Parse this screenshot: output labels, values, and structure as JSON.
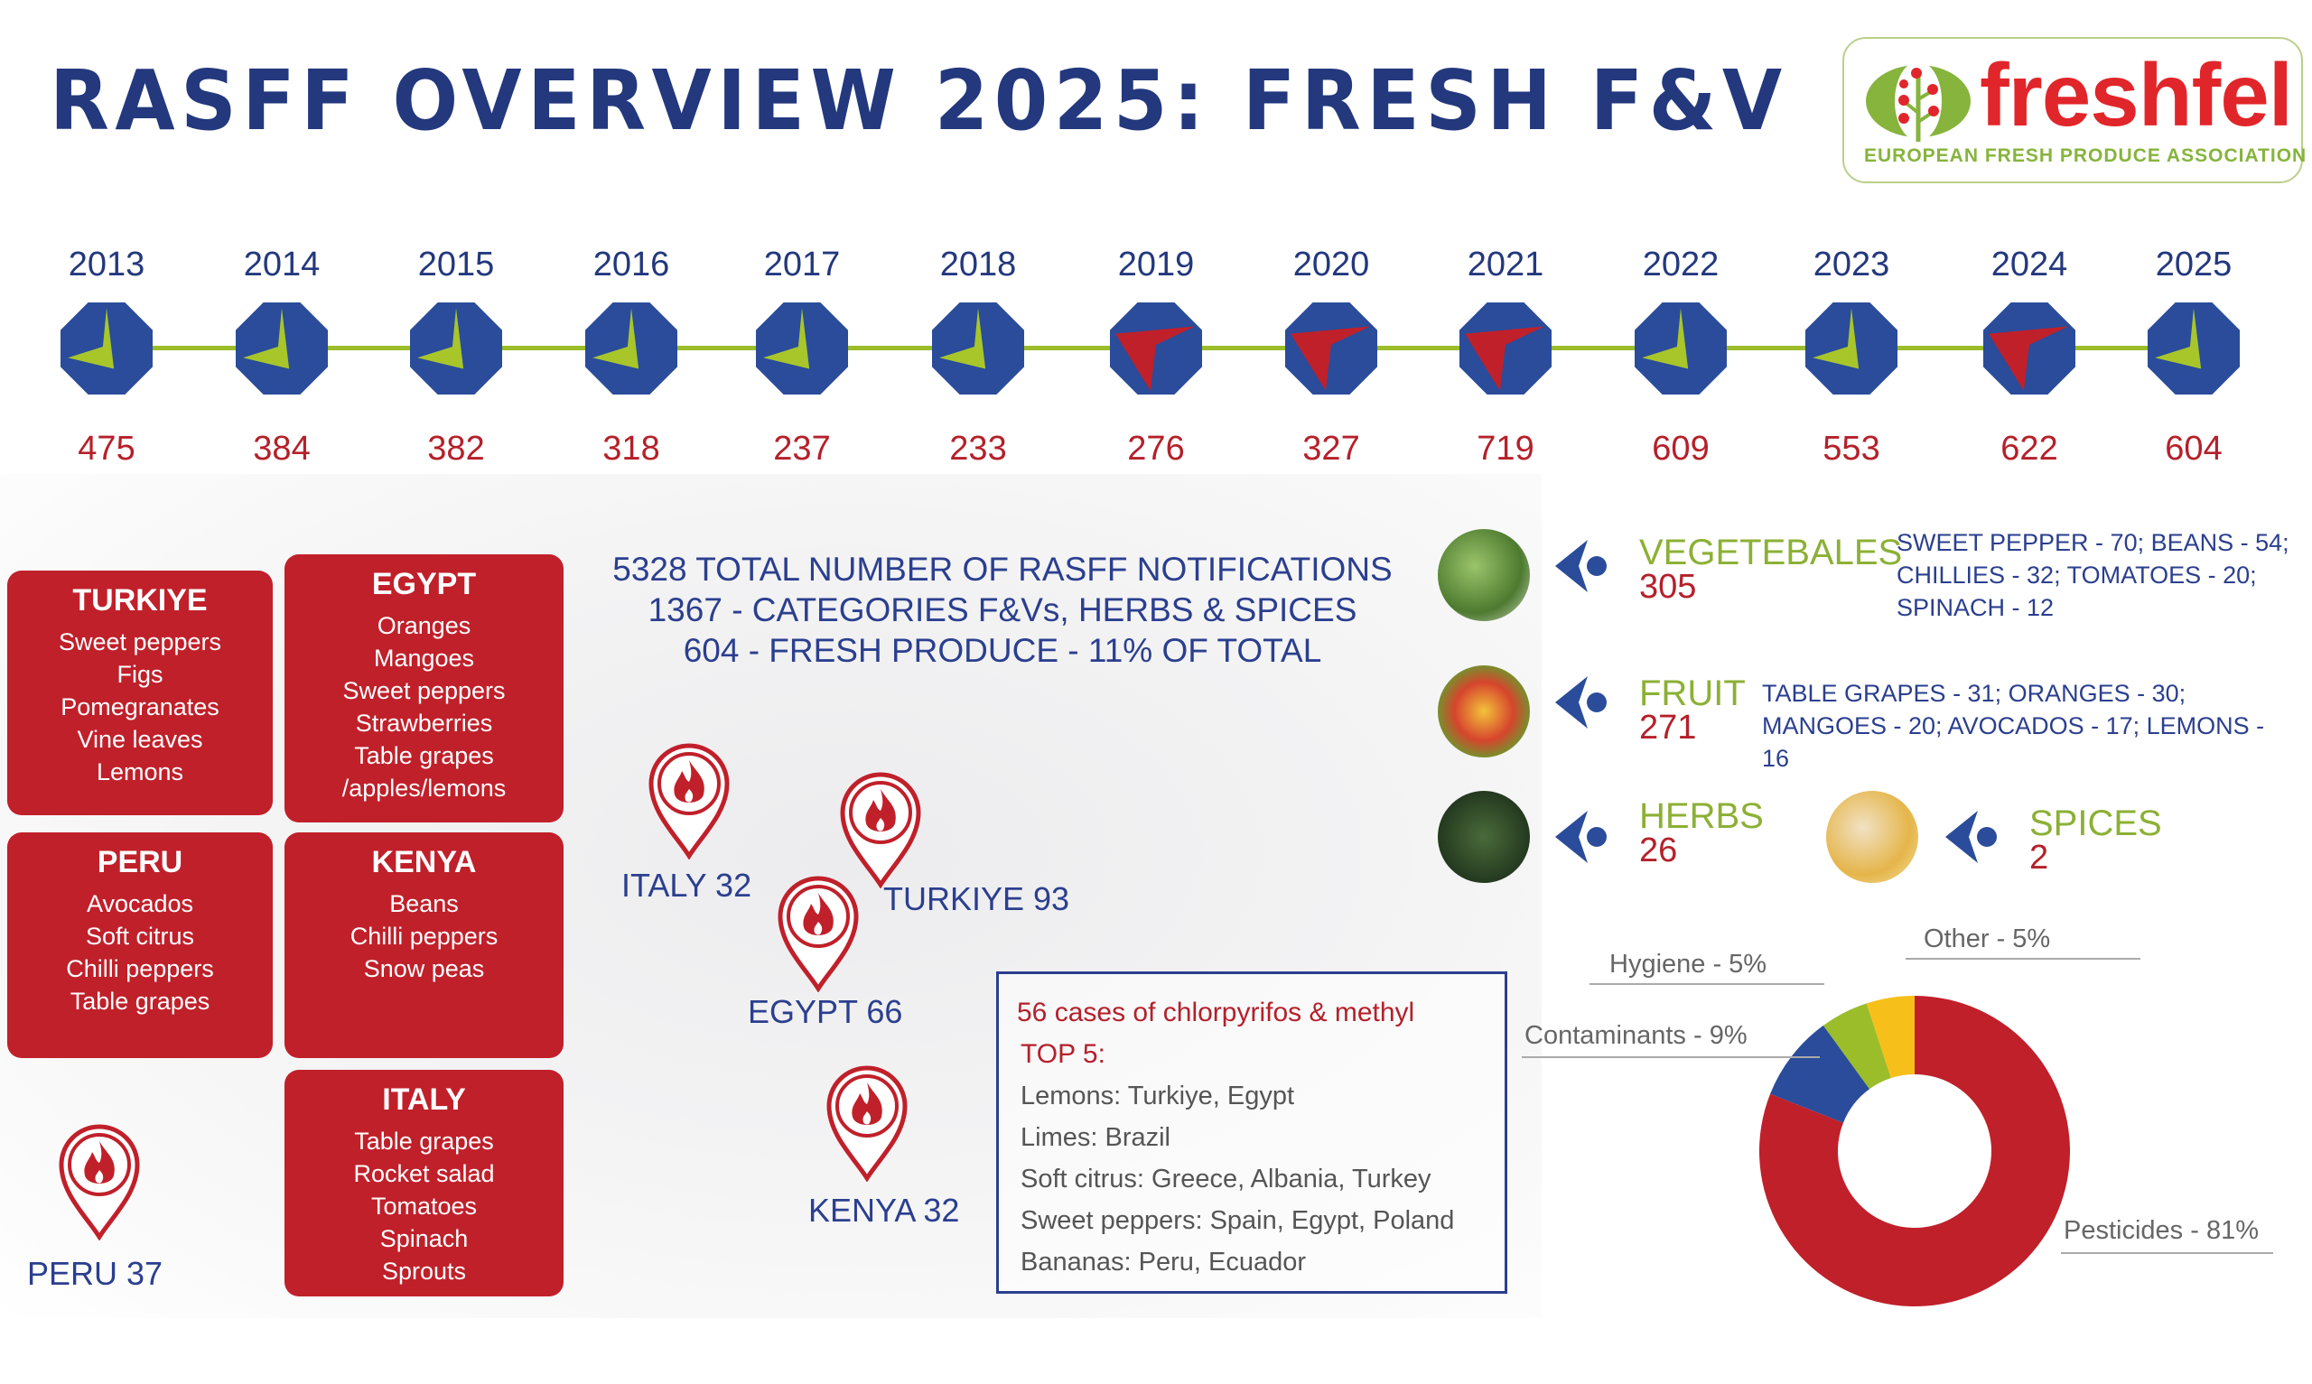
{
  "title": "RASFF OVERVIEW 2025: FRESH F&V",
  "logo": {
    "name": "freshfel",
    "tagline": "EUROPEAN FRESH PRODUCE ASSOCIATION"
  },
  "colors": {
    "navy": "#23387d",
    "red": "#c0202a",
    "green": "#9bbd2a",
    "octagon": "#2a4c9a",
    "yellow": "#f7bf1a"
  },
  "timeline": [
    {
      "year": "2013",
      "value": "475",
      "trend": "down"
    },
    {
      "year": "2014",
      "value": "384",
      "trend": "down"
    },
    {
      "year": "2015",
      "value": "382",
      "trend": "down"
    },
    {
      "year": "2016",
      "value": "318",
      "trend": "down"
    },
    {
      "year": "2017",
      "value": "237",
      "trend": "down"
    },
    {
      "year": "2018",
      "value": "233",
      "trend": "down"
    },
    {
      "year": "2019",
      "value": "276",
      "trend": "up"
    },
    {
      "year": "2020",
      "value": "327",
      "trend": "up"
    },
    {
      "year": "2021",
      "value": "719",
      "trend": "up"
    },
    {
      "year": "2022",
      "value": "609",
      "trend": "down"
    },
    {
      "year": "2023",
      "value": "553",
      "trend": "down"
    },
    {
      "year": "2024",
      "value": "622",
      "trend": "up"
    },
    {
      "year": "2025",
      "value": "604",
      "trend": "down"
    }
  ],
  "countries": [
    {
      "name": "TURKIYE",
      "items": [
        "Sweet peppers",
        "Figs",
        "Pomegranates",
        "Vine leaves",
        "Lemons"
      ]
    },
    {
      "name": "EGYPT",
      "items": [
        "Oranges",
        "Mangoes",
        "Sweet peppers",
        "Strawberries",
        "Table grapes",
        "/apples/lemons"
      ]
    },
    {
      "name": "PERU",
      "items": [
        "Avocados",
        "Soft citrus",
        "Chilli peppers",
        "Table grapes"
      ]
    },
    {
      "name": "KENYA",
      "items": [
        "Beans",
        "Chilli peppers",
        "Snow peas"
      ]
    },
    {
      "name": "ITALY",
      "items": [
        "Table grapes",
        "Rocket salad",
        "Tomatoes",
        "Spinach",
        "Sprouts"
      ]
    }
  ],
  "summary": [
    "5328 TOTAL NUMBER OF RASFF NOTIFICATIONS",
    "1367 - CATEGORIES F&Vs, HERBS & SPICES",
    "604 - FRESH PRODUCE - 11% OF TOTAL"
  ],
  "pins": [
    {
      "label": "ITALY 32"
    },
    {
      "label": "TURKIYE 93"
    },
    {
      "label": "EGYPT 66"
    },
    {
      "label": "KENYA 32"
    },
    {
      "label": "PERU 37"
    }
  ],
  "top5": {
    "heading": "56 cases of chlorpyrifos & methyl",
    "subheading": "TOP 5:",
    "rows": [
      "Lemons: Turkiye, Egypt",
      "Limes: Brazil",
      "Soft citrus: Greece, Albania, Turkey",
      "Sweet peppers: Spain, Egypt, Poland",
      "Bananas: Peru, Ecuador"
    ]
  },
  "categories": [
    {
      "label": "VEGETEBALES",
      "count": "305",
      "details": [
        "SWEET PEPPER - 70; BEANS - 54;",
        "CHILLIES - 32; TOMATOES - 20;",
        "SPINACH - 12"
      ]
    },
    {
      "label": "FRUIT",
      "count": "271",
      "details": [
        "TABLE GRAPES - 31; ORANGES - 30;",
        "MANGOES - 20; AVOCADOS - 17; LEMONS -",
        "16"
      ]
    },
    {
      "label": "HERBS",
      "count": "26",
      "details": []
    },
    {
      "label": "SPICES",
      "count": "2",
      "details": []
    }
  ],
  "chart_data": {
    "type": "pie",
    "variant": "donut",
    "title": "",
    "categories": [
      "Pesticides",
      "Contaminants",
      "Hygiene",
      "Other"
    ],
    "values": [
      81,
      9,
      5,
      5
    ],
    "labels": [
      "Pesticides - 81%",
      "Contaminants - 9%",
      "Hygiene - 5%",
      "Other - 5%"
    ],
    "colors": [
      "#c0202a",
      "#2a4c9a",
      "#9bbd2a",
      "#f7bf1a"
    ],
    "start": "top",
    "direction": "clockwise"
  }
}
